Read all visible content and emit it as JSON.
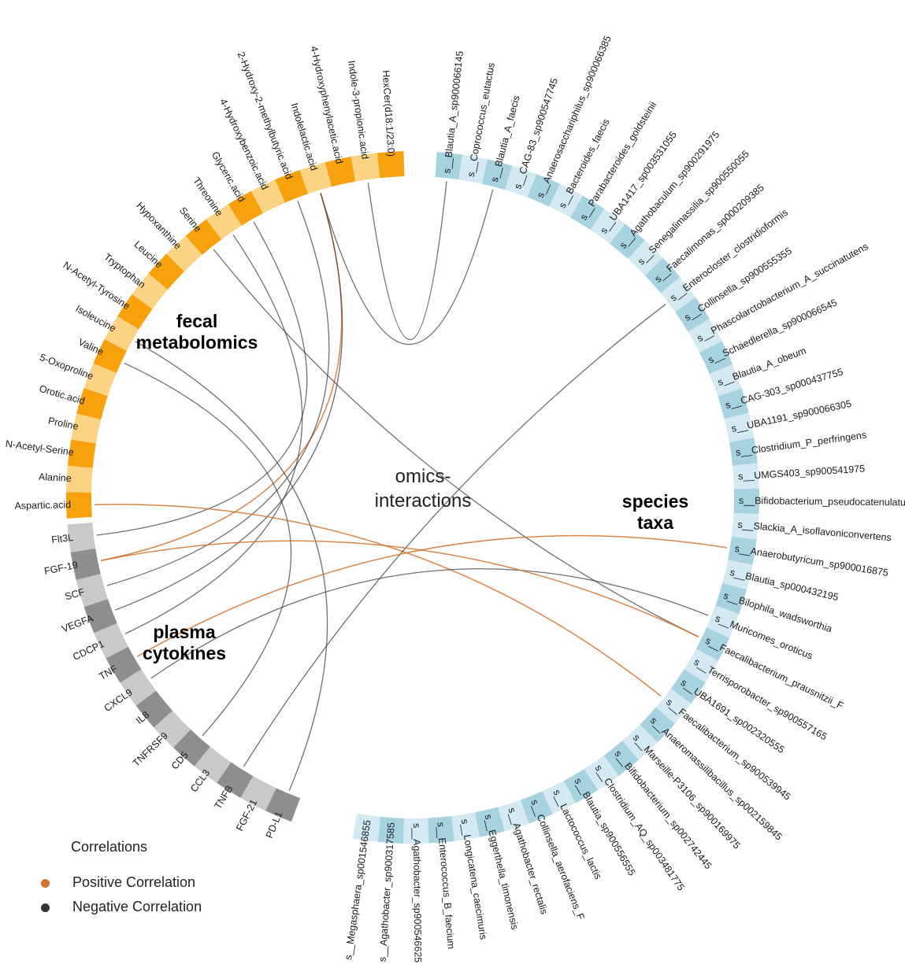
{
  "groups": {
    "fecal_title_1": "fecal",
    "fecal_title_2": "metabolomics",
    "cytokine_title_1": "plasma",
    "cytokine_title_2": "cytokines",
    "species_title_1": "species",
    "species_title_2": "taxa",
    "center_1": "omics-",
    "center_2": "interactions"
  },
  "colors": {
    "metab_dark": "#f7a10c",
    "metab_light": "#fbd383",
    "cyto_dark": "#8e8e8e",
    "cyto_light": "#c9c9c9",
    "species_dark": "#a7d2e0",
    "species_light": "#d4e9f1",
    "positive": "#d4712a",
    "negative": "#333333"
  },
  "metabolites": [
    "HexCer(d18:1/23:0)",
    "Indole-3-propionic.acid",
    "4-Hydroxyphenylacetic.acid",
    "Indolelactic.acid",
    "2-Hydroxy-2-methylbutyric.acid",
    "4-Hydroxybenzoic.acid",
    "Glyceric.acid",
    "Threonine",
    "Serine",
    "Hypoxanthine",
    "Leucine",
    "Tryptophan",
    "N-Acetyl-Tyrosine",
    "Isoleucine",
    "Valine",
    "5-Oxoproline",
    "Orotic.acid",
    "Proline",
    "N-Acetyl-Serine",
    "Alanine",
    "Aspartic.acid"
  ],
  "cytokines": [
    "PD-L1",
    "FGF-21",
    "TNFB",
    "CCL3",
    "CD5",
    "TNFRSF9",
    "IL8",
    "CXCL9",
    "TNF",
    "CDCP1",
    "VEGFA",
    "SCF",
    "FGF-19",
    "Flt3L"
  ],
  "species": [
    "s__Blautia_A_sp900066145",
    "s__Coprococcus_eutactus",
    "s__Blautia_A_faecis",
    "s__CAG-83_sp900547745",
    "s__Anaerosacchariphilus_sp900066385",
    "s__Bacteroides_faecis",
    "s__Parabacteroides_goldsteinii",
    "s__UBA1417_sp003531055",
    "s__Agathobaculum_sp900291975",
    "s__Senegalimassilia_sp900550055",
    "s__Faecalimonas_sp000209385",
    "s__Enterocloster_clostridioformis",
    "s__Collinsella_sp900555355",
    "s__Phascolarctobacterium_A_succinatutens",
    "s__Schaedlerella_sp900066545",
    "s__Blautia_A_obeum",
    "s__CAG-303_sp000437755",
    "s__UBA1191_sp900066305",
    "s__Clostridium_P_perfringens",
    "s__UMGS403_sp900541975",
    "s__Bifidobacterium_pseudocatenulatum",
    "s__Slackia_A_isoflavoniconvertens",
    "s__Anaerobutyricum_sp900016875",
    "s__Blautia_sp000432195",
    "s__Bilophila_wadsworthia",
    "s__Muricomes_oroticus",
    "s__Faecalibacterium_prausnitzii_F",
    "s__Terrisporobacter_sp900557165",
    "s__UBA1691_sp002320555",
    "s__Faecalibacterium_sp900539945",
    "s__Anaeromassilibacillus_sp002159845",
    "s__Marseille-P3106_sp900169975",
    "s__Bifidobacterium_sp002742445",
    "s__Clostridium_AQ_sp003481775",
    "s__Blautia_sp900556555",
    "s__Lactococcus_lactis",
    "s__Collinsella_aerofaciens_F",
    "s__Agathobacter_rectalis",
    "s__Eggerthella_timonensis",
    "s__Longicatena_caecimuris",
    "s__Enterococcus_B_faecium",
    "s__Agathobacter_sp900546625",
    "s__Agathobacter_sp900317585",
    "s__Megasphaera_sp001546855"
  ],
  "links": [
    {
      "from": "Indole-3-propionic.acid",
      "to": "s__Blautia_A_sp900066145",
      "sign": "negative"
    },
    {
      "from": "Indolelactic.acid",
      "to": "s__Blautia_A_faecis",
      "sign": "negative"
    },
    {
      "from": "Indolelactic.acid",
      "to": "FGF-19",
      "sign": "positive"
    },
    {
      "from": "Indolelactic.acid",
      "to": "VEGFA",
      "sign": "negative"
    },
    {
      "from": "2-Hydroxy-2-methylbutyric.acid",
      "to": "SCF",
      "sign": "negative"
    },
    {
      "from": "Glyceric.acid",
      "to": "Flt3L",
      "sign": "negative"
    },
    {
      "from": "Threonine",
      "to": "CDCP1",
      "sign": "negative"
    },
    {
      "from": "Serine",
      "to": "s__Faecalibacterium_prausnitzii_F",
      "sign": "negative"
    },
    {
      "from": "Isoleucine",
      "to": "PD-L1",
      "sign": "negative"
    },
    {
      "from": "Valine",
      "to": "CD5",
      "sign": "negative"
    },
    {
      "from": "Aspartic.acid",
      "to": "s__Faecalibacterium_sp900539945",
      "sign": "positive"
    },
    {
      "from": "TNFB",
      "to": "s__Enterocloster_clostridioformis",
      "sign": "negative"
    },
    {
      "from": "TNF",
      "to": "s__Anaerobutyricum_sp900016875",
      "sign": "positive"
    },
    {
      "from": "CXCL9",
      "to": "s__Muricomes_oroticus",
      "sign": "negative"
    },
    {
      "from": "FGF-19",
      "to": "s__Faecalibacterium_prausnitzii_F",
      "sign": "positive"
    }
  ],
  "legend": {
    "title": "Correlations",
    "positive": "Positive Correlation",
    "negative": "Negative Correlation"
  }
}
